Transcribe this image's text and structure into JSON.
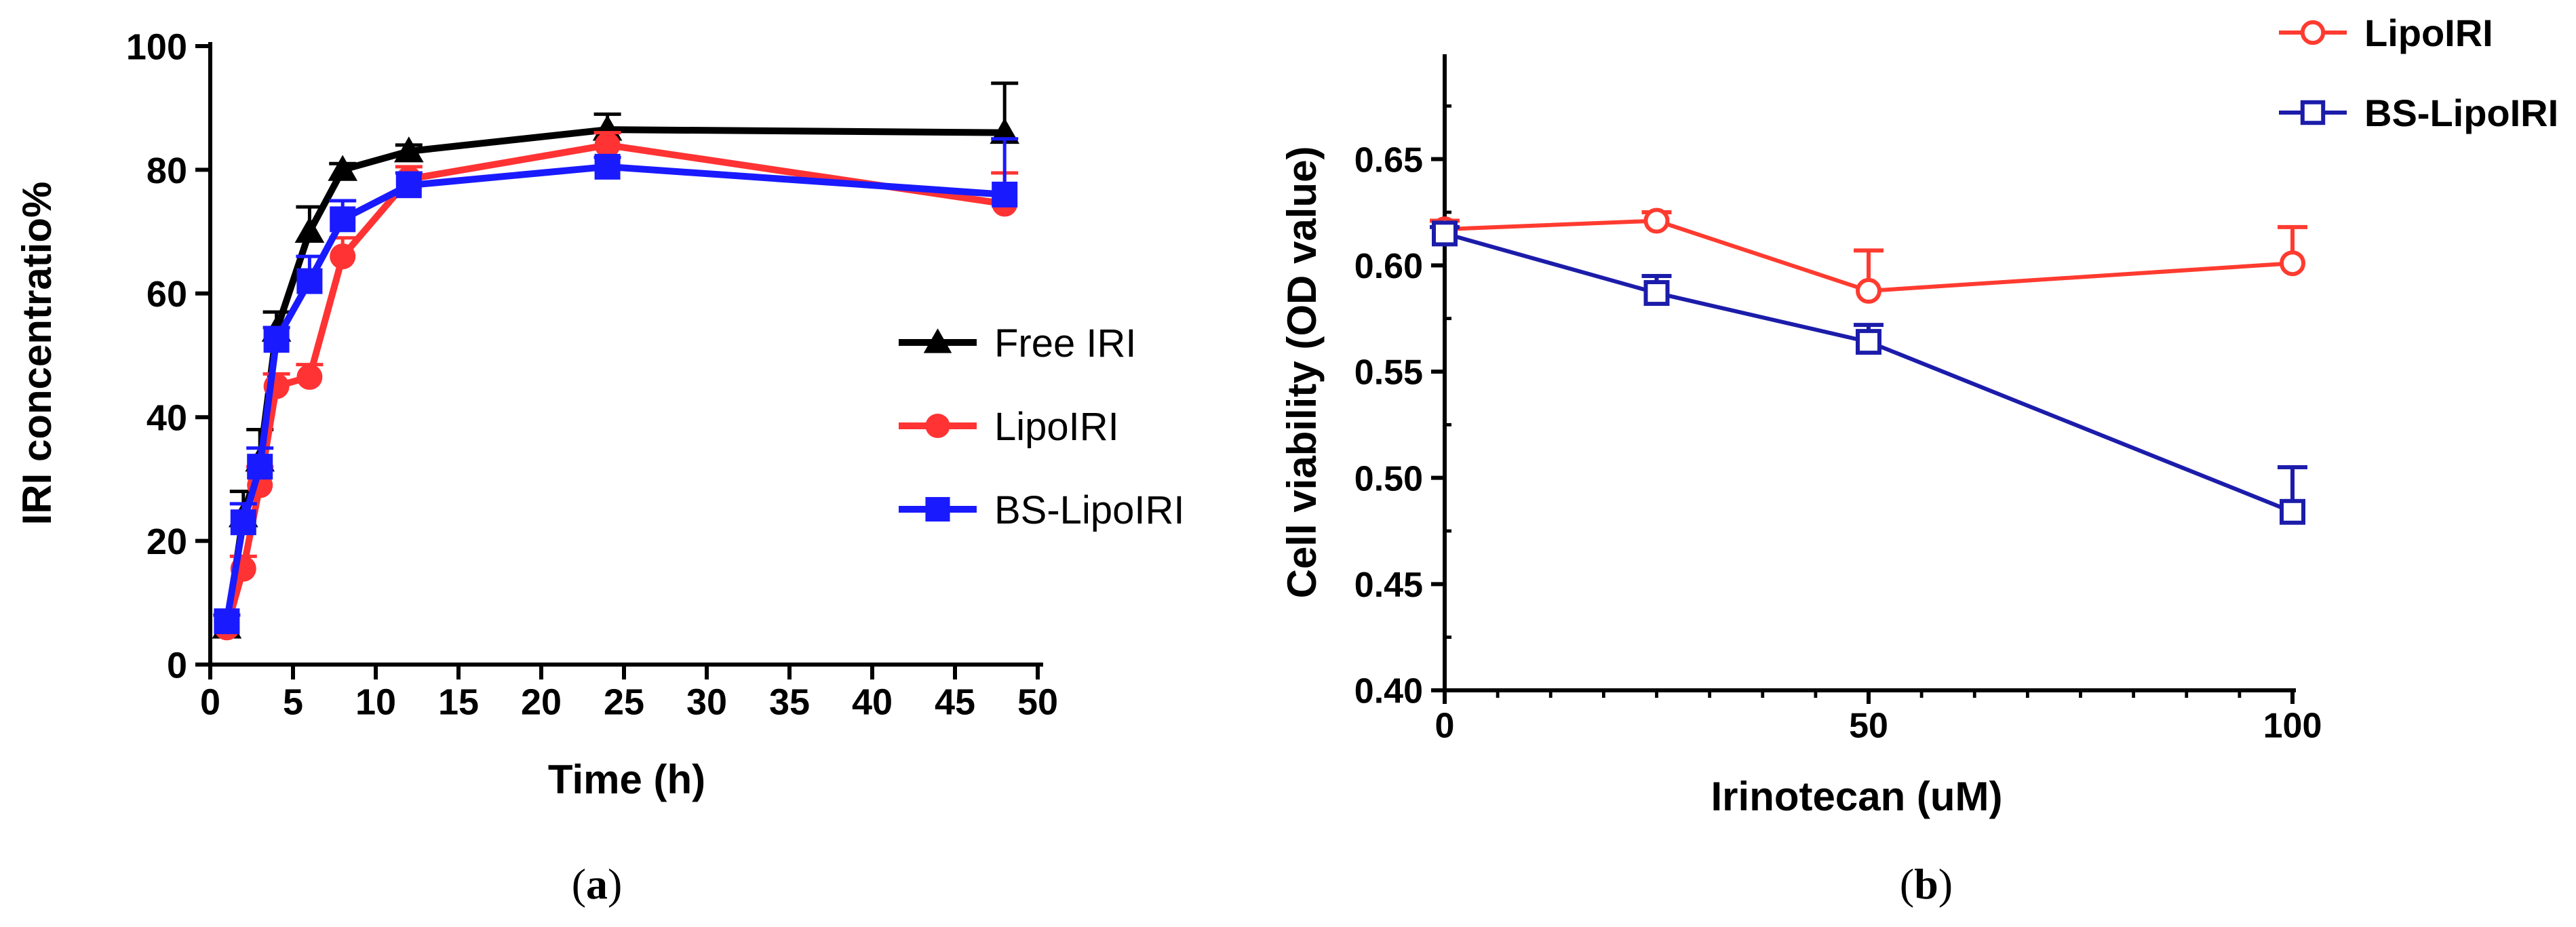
{
  "chart_data": [
    {
      "panel": "a",
      "type": "line",
      "caption": "(a)",
      "caption_letter": "a",
      "xlabel": "Time (h)",
      "ylabel": "IRI concentratio%",
      "xlim": [
        0,
        50
      ],
      "ylim": [
        0,
        100
      ],
      "xticks": [
        0,
        5,
        10,
        15,
        20,
        25,
        30,
        35,
        40,
        45,
        50
      ],
      "yticks": [
        0,
        20,
        40,
        60,
        80,
        100
      ],
      "grid": false,
      "legend_position": "right",
      "series": [
        {
          "name": "Free IRI",
          "color": "#000000",
          "marker": "triangle",
          "x": [
            1,
            2,
            3,
            4,
            6,
            8,
            12,
            24,
            48
          ],
          "y": [
            6,
            24,
            33,
            54,
            70,
            80,
            83,
            86.5,
            86
          ],
          "err": [
            0,
            4,
            5,
            3,
            4,
            1,
            1,
            2.5,
            8
          ]
        },
        {
          "name": "LipoIRI",
          "color": "#ff3333",
          "marker": "circle",
          "x": [
            1,
            2,
            3,
            4,
            6,
            8,
            12,
            24,
            48
          ],
          "y": [
            6,
            15.5,
            29,
            45,
            46.5,
            66,
            78.5,
            84,
            74.5
          ],
          "err": [
            0,
            2,
            3,
            2,
            2,
            3,
            2,
            2,
            5
          ]
        },
        {
          "name": "BS-LipoIRI",
          "color": "#1a1aff",
          "marker": "square",
          "x": [
            1,
            2,
            3,
            4,
            6,
            8,
            12,
            24,
            48
          ],
          "y": [
            7,
            23,
            32,
            52.5,
            62,
            72,
            77.5,
            80.5,
            76
          ],
          "err": [
            1,
            3,
            3,
            2,
            4,
            3,
            2,
            1.5,
            9
          ]
        }
      ]
    },
    {
      "panel": "b",
      "type": "line",
      "caption": "(b)",
      "caption_letter": "b",
      "xlabel": "Irinotecan (uM)",
      "ylabel": "Cell viability (OD value)",
      "xlim": [
        0,
        100
      ],
      "ylim": [
        0.4,
        0.7
      ],
      "xticks": [
        0,
        50,
        100
      ],
      "yticks": [
        0.4,
        0.45,
        0.5,
        0.55,
        0.6,
        0.65
      ],
      "ytick_labels": [
        "0.40",
        "0.45",
        "0.50",
        "0.55",
        "0.60",
        "0.65"
      ],
      "grid": false,
      "legend_position": "top-right",
      "series": [
        {
          "name": "LipoIRI",
          "color": "#ff3b30",
          "marker": "open-circle",
          "x": [
            0,
            25,
            50,
            100
          ],
          "y": [
            0.617,
            0.621,
            0.588,
            0.601
          ],
          "err": [
            0.004,
            0.004,
            0.019,
            0.017
          ]
        },
        {
          "name": "BS-LipoIRI",
          "color": "#1c1caa",
          "marker": "open-square",
          "x": [
            0,
            25,
            50,
            100
          ],
          "y": [
            0.615,
            0.587,
            0.564,
            0.484
          ],
          "err": [
            0.003,
            0.008,
            0.008,
            0.021
          ]
        }
      ]
    }
  ]
}
